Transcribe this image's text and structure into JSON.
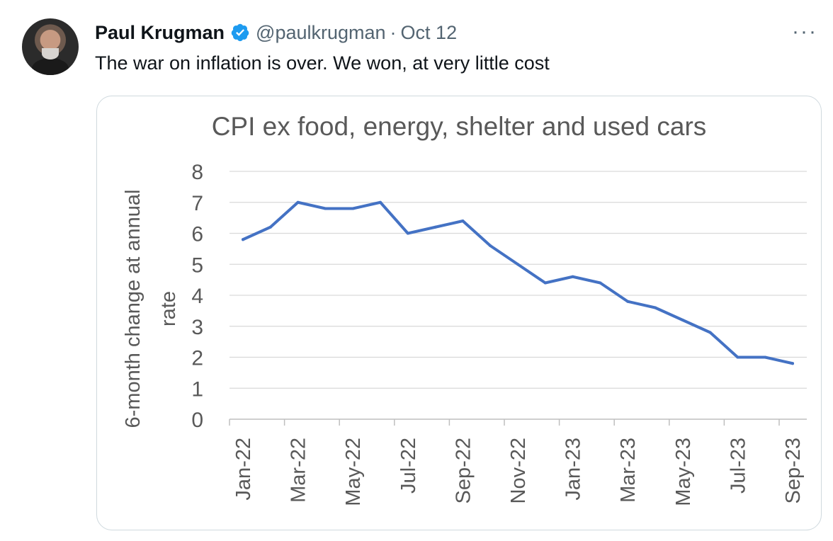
{
  "tweet": {
    "author_name": "Paul Krugman",
    "handle": "@paulkrugman",
    "separator": "·",
    "date": "Oct 12",
    "text": "The war on inflation is over. We won, at very little cost",
    "more_label": "···"
  },
  "colors": {
    "line": "#4472c4",
    "verified": "#1d9bf0",
    "axis_text": "#595959",
    "grid": "#d9d9d9"
  },
  "icons": {
    "verified": "verified-badge-icon",
    "more": "more-options-icon"
  },
  "chart_data": {
    "type": "line",
    "title": "CPI ex food, energy, shelter and used cars",
    "ylabel": "6-month change at annual rate",
    "xlabel": "",
    "ylim": [
      0,
      8
    ],
    "yticks": [
      0,
      1,
      2,
      3,
      4,
      5,
      6,
      7,
      8
    ],
    "grid": true,
    "legend": "none",
    "x": [
      "Jan-22",
      "Feb-22",
      "Mar-22",
      "Apr-22",
      "May-22",
      "Jun-22",
      "Jul-22",
      "Aug-22",
      "Sep-22",
      "Oct-22",
      "Nov-22",
      "Dec-22",
      "Jan-23",
      "Feb-23",
      "Mar-23",
      "Apr-23",
      "May-23",
      "Jun-23",
      "Jul-23",
      "Aug-23",
      "Sep-23"
    ],
    "tick_labels": [
      "Jan-22",
      "Mar-22",
      "May-22",
      "Jul-22",
      "Sep-22",
      "Nov-22",
      "Jan-23",
      "Mar-23",
      "May-23",
      "Jul-23",
      "Sep-23"
    ],
    "series": [
      {
        "values": [
          5.8,
          6.2,
          7.0,
          6.8,
          6.8,
          7.0,
          6.0,
          6.2,
          6.4,
          5.6,
          5.0,
          4.4,
          4.6,
          4.4,
          3.8,
          3.6,
          3.2,
          2.8,
          2.0,
          2.0,
          1.8
        ]
      }
    ]
  }
}
